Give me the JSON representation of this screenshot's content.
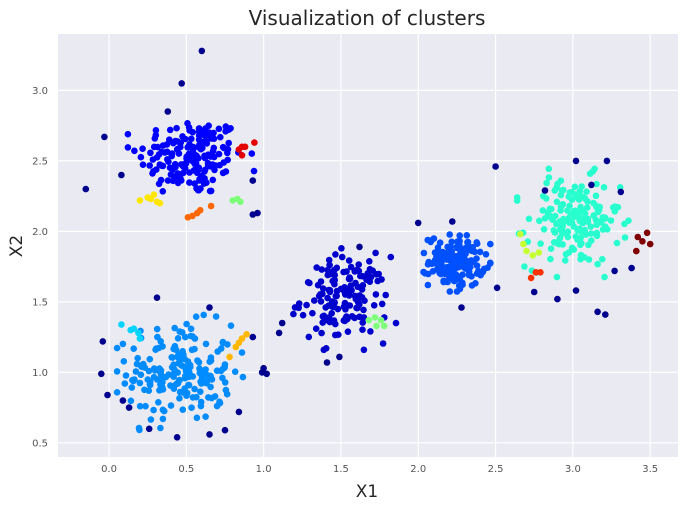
{
  "chart_data": {
    "type": "scatter",
    "title": "Visualization of clusters",
    "xlabel": "X1",
    "ylabel": "X2",
    "xlim": [
      -0.33,
      3.68
    ],
    "ylim": [
      0.4,
      3.4
    ],
    "xticks": [
      0.0,
      0.5,
      1.0,
      1.5,
      2.0,
      2.5,
      3.0,
      3.5
    ],
    "xtick_labels": [
      "0.0",
      "0.5",
      "1.0",
      "1.5",
      "2.0",
      "2.5",
      "3.0",
      "3.5"
    ],
    "yticks": [
      0.5,
      1.0,
      1.5,
      2.0,
      2.5,
      3.0
    ],
    "ytick_labels": [
      "0.5",
      "1.0",
      "1.5",
      "2.0",
      "2.5",
      "3.0"
    ],
    "grid": true,
    "style": "seaborn",
    "colors": {
      "background": "#eaeaf2",
      "grid": "#ffffff",
      "noise": "#00008f"
    },
    "series": [
      {
        "name": "cluster-top-left",
        "color": "#0000ff",
        "center": [
          0.53,
          2.53
        ],
        "spread": [
          0.17,
          0.14
        ],
        "count": 170
      },
      {
        "name": "cluster-bottom-left",
        "color": "#008cff",
        "center": [
          0.46,
          1.0
        ],
        "spread": [
          0.17,
          0.17
        ],
        "count": 190
      },
      {
        "name": "cluster-middle",
        "color": "#0000cd",
        "center": [
          1.52,
          1.52
        ],
        "spread": [
          0.14,
          0.15
        ],
        "count": 150
      },
      {
        "name": "cluster-center-right",
        "color": "#0050ff",
        "center": [
          2.25,
          1.79
        ],
        "spread": [
          0.09,
          0.09
        ],
        "count": 150
      },
      {
        "name": "cluster-right",
        "color": "#29ffce",
        "center": [
          3.0,
          2.06
        ],
        "spread": [
          0.15,
          0.16
        ],
        "count": 170
      },
      {
        "name": "small-yellow",
        "color": "#ffe600",
        "points": [
          [
            0.2,
            2.22
          ],
          [
            0.25,
            2.24
          ],
          [
            0.29,
            2.26
          ],
          [
            0.31,
            2.21
          ],
          [
            0.33,
            2.2
          ],
          [
            0.27,
            2.23
          ]
        ]
      },
      {
        "name": "small-orange-top",
        "color": "#ff6800",
        "points": [
          [
            0.51,
            2.1
          ],
          [
            0.54,
            2.11
          ],
          [
            0.57,
            2.13
          ],
          [
            0.59,
            2.15
          ],
          [
            0.66,
            2.18
          ]
        ]
      },
      {
        "name": "small-red-top",
        "color": "#e40000",
        "points": [
          [
            0.84,
            2.58
          ],
          [
            0.86,
            2.6
          ],
          [
            0.88,
            2.6
          ],
          [
            0.86,
            2.54
          ],
          [
            0.94,
            2.63
          ]
        ]
      },
      {
        "name": "small-lightgreen-top",
        "color": "#7dff7a",
        "points": [
          [
            0.8,
            2.22
          ],
          [
            0.83,
            2.23
          ],
          [
            0.85,
            2.21
          ]
        ]
      },
      {
        "name": "small-cyan",
        "color": "#00d4ff",
        "points": [
          [
            0.08,
            1.34
          ],
          [
            0.14,
            1.3
          ],
          [
            0.16,
            1.31
          ],
          [
            0.19,
            1.28
          ],
          [
            0.2,
            1.24
          ]
        ]
      },
      {
        "name": "small-amber",
        "color": "#ffb700",
        "points": [
          [
            0.78,
            1.11
          ],
          [
            0.82,
            1.18
          ],
          [
            0.84,
            1.21
          ],
          [
            0.86,
            1.24
          ],
          [
            0.89,
            1.27
          ]
        ]
      },
      {
        "name": "small-lightgreen-mid",
        "color": "#7dff7a",
        "points": [
          [
            1.68,
            1.37
          ],
          [
            1.72,
            1.39
          ],
          [
            1.76,
            1.37
          ],
          [
            1.78,
            1.33
          ],
          [
            1.73,
            1.33
          ]
        ]
      },
      {
        "name": "small-yellowgreen",
        "color": "#c4ff33",
        "points": [
          [
            2.66,
            1.98
          ],
          [
            2.68,
            1.91
          ],
          [
            2.7,
            1.86
          ],
          [
            2.74,
            1.83
          ],
          [
            2.78,
            1.85
          ]
        ]
      },
      {
        "name": "small-red-right",
        "color": "#ff3000",
        "points": [
          [
            2.73,
            1.67
          ],
          [
            2.76,
            1.71
          ],
          [
            2.79,
            1.71
          ]
        ]
      },
      {
        "name": "small-darkred",
        "color": "#800000",
        "points": [
          [
            3.42,
            1.96
          ],
          [
            3.45,
            1.93
          ],
          [
            3.48,
            1.99
          ],
          [
            3.5,
            1.91
          ],
          [
            3.41,
            1.86
          ]
        ]
      },
      {
        "name": "noise",
        "color": "#00008f",
        "points": [
          [
            -0.15,
            2.3
          ],
          [
            -0.03,
            2.67
          ],
          [
            0.6,
            3.28
          ],
          [
            0.47,
            3.05
          ],
          [
            0.38,
            2.85
          ],
          [
            0.08,
            2.4
          ],
          [
            0.93,
            2.12
          ],
          [
            0.96,
            2.13
          ],
          [
            0.93,
            2.36
          ],
          [
            2.5,
            2.46
          ],
          [
            2.22,
            2.07
          ],
          [
            2.0,
            2.06
          ],
          [
            2.51,
            1.6
          ],
          [
            2.28,
            1.46
          ],
          [
            1.62,
            1.89
          ],
          [
            1.1,
            1.28
          ],
          [
            1.12,
            1.35
          ],
          [
            1.41,
            1.07
          ],
          [
            1.49,
            1.11
          ],
          [
            0.31,
            1.53
          ],
          [
            0.65,
            1.46
          ],
          [
            0.93,
            1.25
          ],
          [
            1.0,
            1.03
          ],
          [
            1.02,
            0.99
          ],
          [
            0.99,
            1.0
          ],
          [
            -0.04,
            1.22
          ],
          [
            -0.05,
            0.99
          ],
          [
            -0.01,
            0.84
          ],
          [
            0.09,
            0.8
          ],
          [
            0.13,
            0.75
          ],
          [
            0.26,
            0.6
          ],
          [
            0.44,
            0.54
          ],
          [
            0.65,
            0.56
          ],
          [
            0.75,
            0.59
          ],
          [
            0.84,
            0.72
          ],
          [
            3.02,
            2.5
          ],
          [
            3.12,
            2.33
          ],
          [
            3.22,
            2.5
          ],
          [
            2.82,
            2.29
          ],
          [
            2.75,
            1.57
          ],
          [
            2.9,
            1.52
          ],
          [
            3.16,
            1.43
          ],
          [
            3.21,
            1.41
          ],
          [
            3.27,
            1.72
          ],
          [
            3.38,
            1.74
          ],
          [
            3.02,
            1.58
          ],
          [
            3.31,
            2.28
          ]
        ]
      }
    ]
  }
}
